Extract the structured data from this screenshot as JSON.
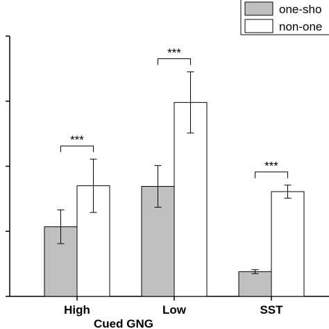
{
  "chart_data": {
    "type": "bar",
    "title": "",
    "xlabel": "Cued GNG",
    "ylabel": "",
    "categories": [
      "High",
      "Low",
      "SST"
    ],
    "ylim": [
      0,
      4.0
    ],
    "y_ticks": [
      0,
      1.0,
      2.0,
      3.0,
      4.0
    ],
    "legend_position": "top-right",
    "grid": false,
    "series": [
      {
        "name": "one-sho",
        "color": "#c0c0c0",
        "values": [
          1.07,
          1.69,
          0.38
        ],
        "error": [
          0.26,
          0.32,
          0.03
        ]
      },
      {
        "name": "non-one",
        "color": "#ffffff",
        "values": [
          1.7,
          2.98,
          1.61
        ],
        "error": [
          0.41,
          0.47,
          0.1
        ]
      }
    ],
    "significance": [
      {
        "category": "High",
        "label": "***"
      },
      {
        "category": "Low",
        "label": "***"
      },
      {
        "category": "SST",
        "label": "***"
      }
    ]
  }
}
